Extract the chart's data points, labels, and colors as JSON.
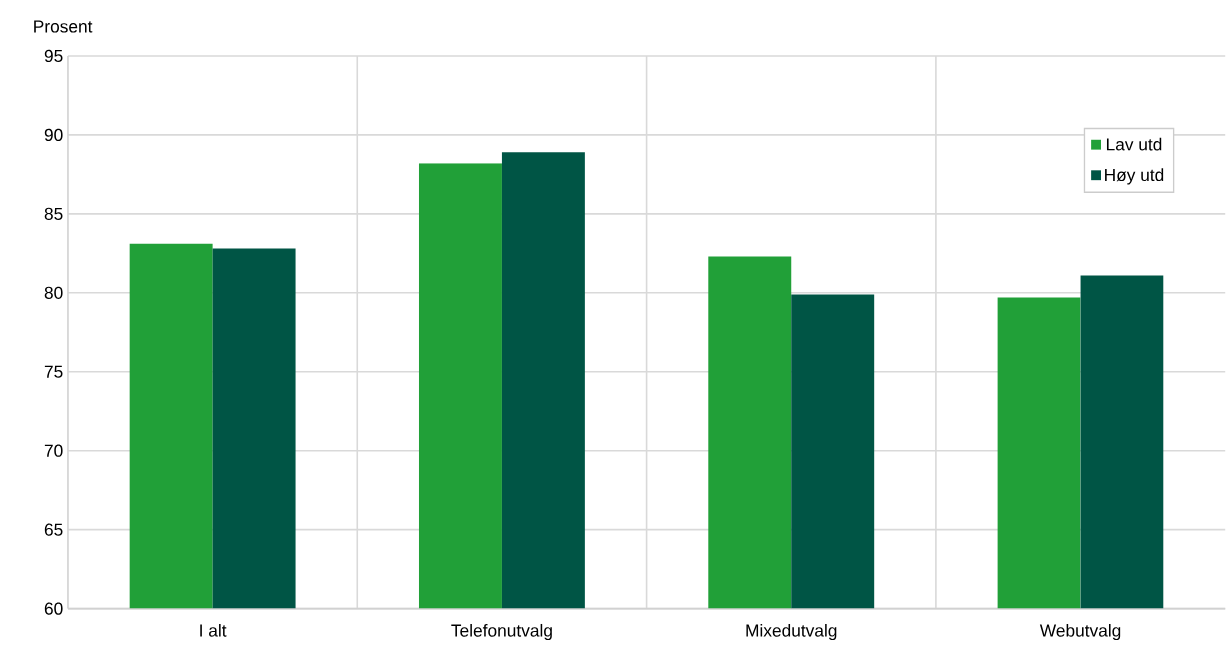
{
  "chart_data": {
    "type": "bar",
    "ylabel": "Prosent",
    "categories": [
      "I alt",
      "Telefonutvalg",
      "Mixedutvalg",
      "Webutvalg"
    ],
    "series": [
      {
        "name": "Lav utd",
        "color": "#21a038",
        "values": [
          83.1,
          88.2,
          82.3,
          79.7
        ]
      },
      {
        "name": "Høy utd",
        "color": "#005545",
        "values": [
          82.8,
          88.9,
          79.9,
          81.1
        ]
      }
    ],
    "ylim": [
      60,
      95
    ],
    "yticks": [
      60,
      65,
      70,
      75,
      80,
      85,
      90,
      95
    ],
    "grid": true,
    "legend": "top right"
  }
}
